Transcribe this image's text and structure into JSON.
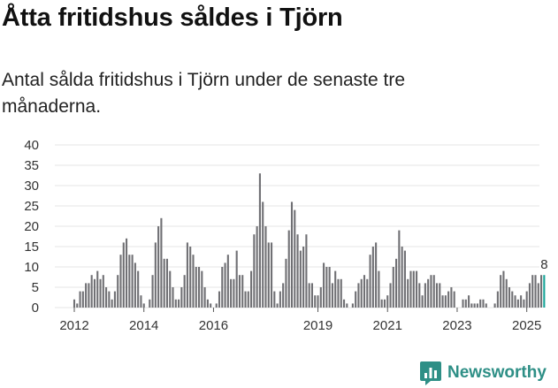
{
  "title": "Åtta fritidshus såldes i Tjörn",
  "subtitle": "Antal sålda fritidshus i Tjörn under de senaste tre månaderna.",
  "brand": {
    "name": "Newsworthy",
    "logo_icon": "bar-chart-logo-icon",
    "color": "#2e8f86"
  },
  "colors": {
    "bar": "#707074",
    "highlight": "#17a398"
  },
  "chart_data": {
    "type": "bar",
    "title": "Åtta fritidshus såldes i Tjörn",
    "xlabel": "",
    "ylabel": "",
    "ylim": [
      0,
      40
    ],
    "y_ticks": [
      "0",
      "5",
      "10",
      "15",
      "20",
      "25",
      "30",
      "35",
      "40"
    ],
    "x_ticks": [
      {
        "label": "2012",
        "index": 0
      },
      {
        "label": "2014",
        "index": 24
      },
      {
        "label": "2016",
        "index": 48
      },
      {
        "label": "2019",
        "index": 84
      },
      {
        "label": "2021",
        "index": 108
      },
      {
        "label": "2023",
        "index": 132
      },
      {
        "label": "2025",
        "index": 156
      }
    ],
    "start": "2012-01",
    "values": [
      2,
      1,
      4,
      4,
      6,
      6,
      8,
      7,
      9,
      7,
      8,
      5,
      4,
      2,
      4,
      8,
      13,
      16,
      17,
      13,
      13,
      11,
      9,
      3,
      1,
      0,
      2,
      8,
      16,
      20,
      22,
      12,
      12,
      9,
      5,
      2,
      2,
      5,
      8,
      16,
      15,
      13,
      10,
      10,
      9,
      5,
      2,
      1,
      0,
      1,
      4,
      10,
      11,
      13,
      7,
      7,
      14,
      8,
      8,
      4,
      4,
      9,
      18,
      20,
      33,
      26,
      20,
      16,
      16,
      4,
      1,
      4,
      6,
      12,
      19,
      26,
      24,
      18,
      14,
      15,
      18,
      6,
      6,
      3,
      3,
      5,
      11,
      10,
      10,
      6,
      9,
      7,
      7,
      2,
      1,
      0,
      1,
      4,
      6,
      7,
      8,
      7,
      13,
      15,
      16,
      9,
      2,
      2,
      3,
      6,
      10,
      12,
      19,
      15,
      14,
      7,
      9,
      9,
      9,
      6,
      3,
      6,
      7,
      8,
      8,
      6,
      6,
      3,
      3,
      4,
      5,
      4,
      0,
      0,
      2,
      2,
      3,
      1,
      1,
      1,
      2,
      2,
      1,
      0,
      0,
      1,
      4,
      8,
      9,
      7,
      5,
      4,
      3,
      2,
      3,
      2,
      4,
      6,
      8,
      8,
      6,
      8,
      8
    ],
    "highlight_index": 162,
    "highlight_label": "8"
  }
}
